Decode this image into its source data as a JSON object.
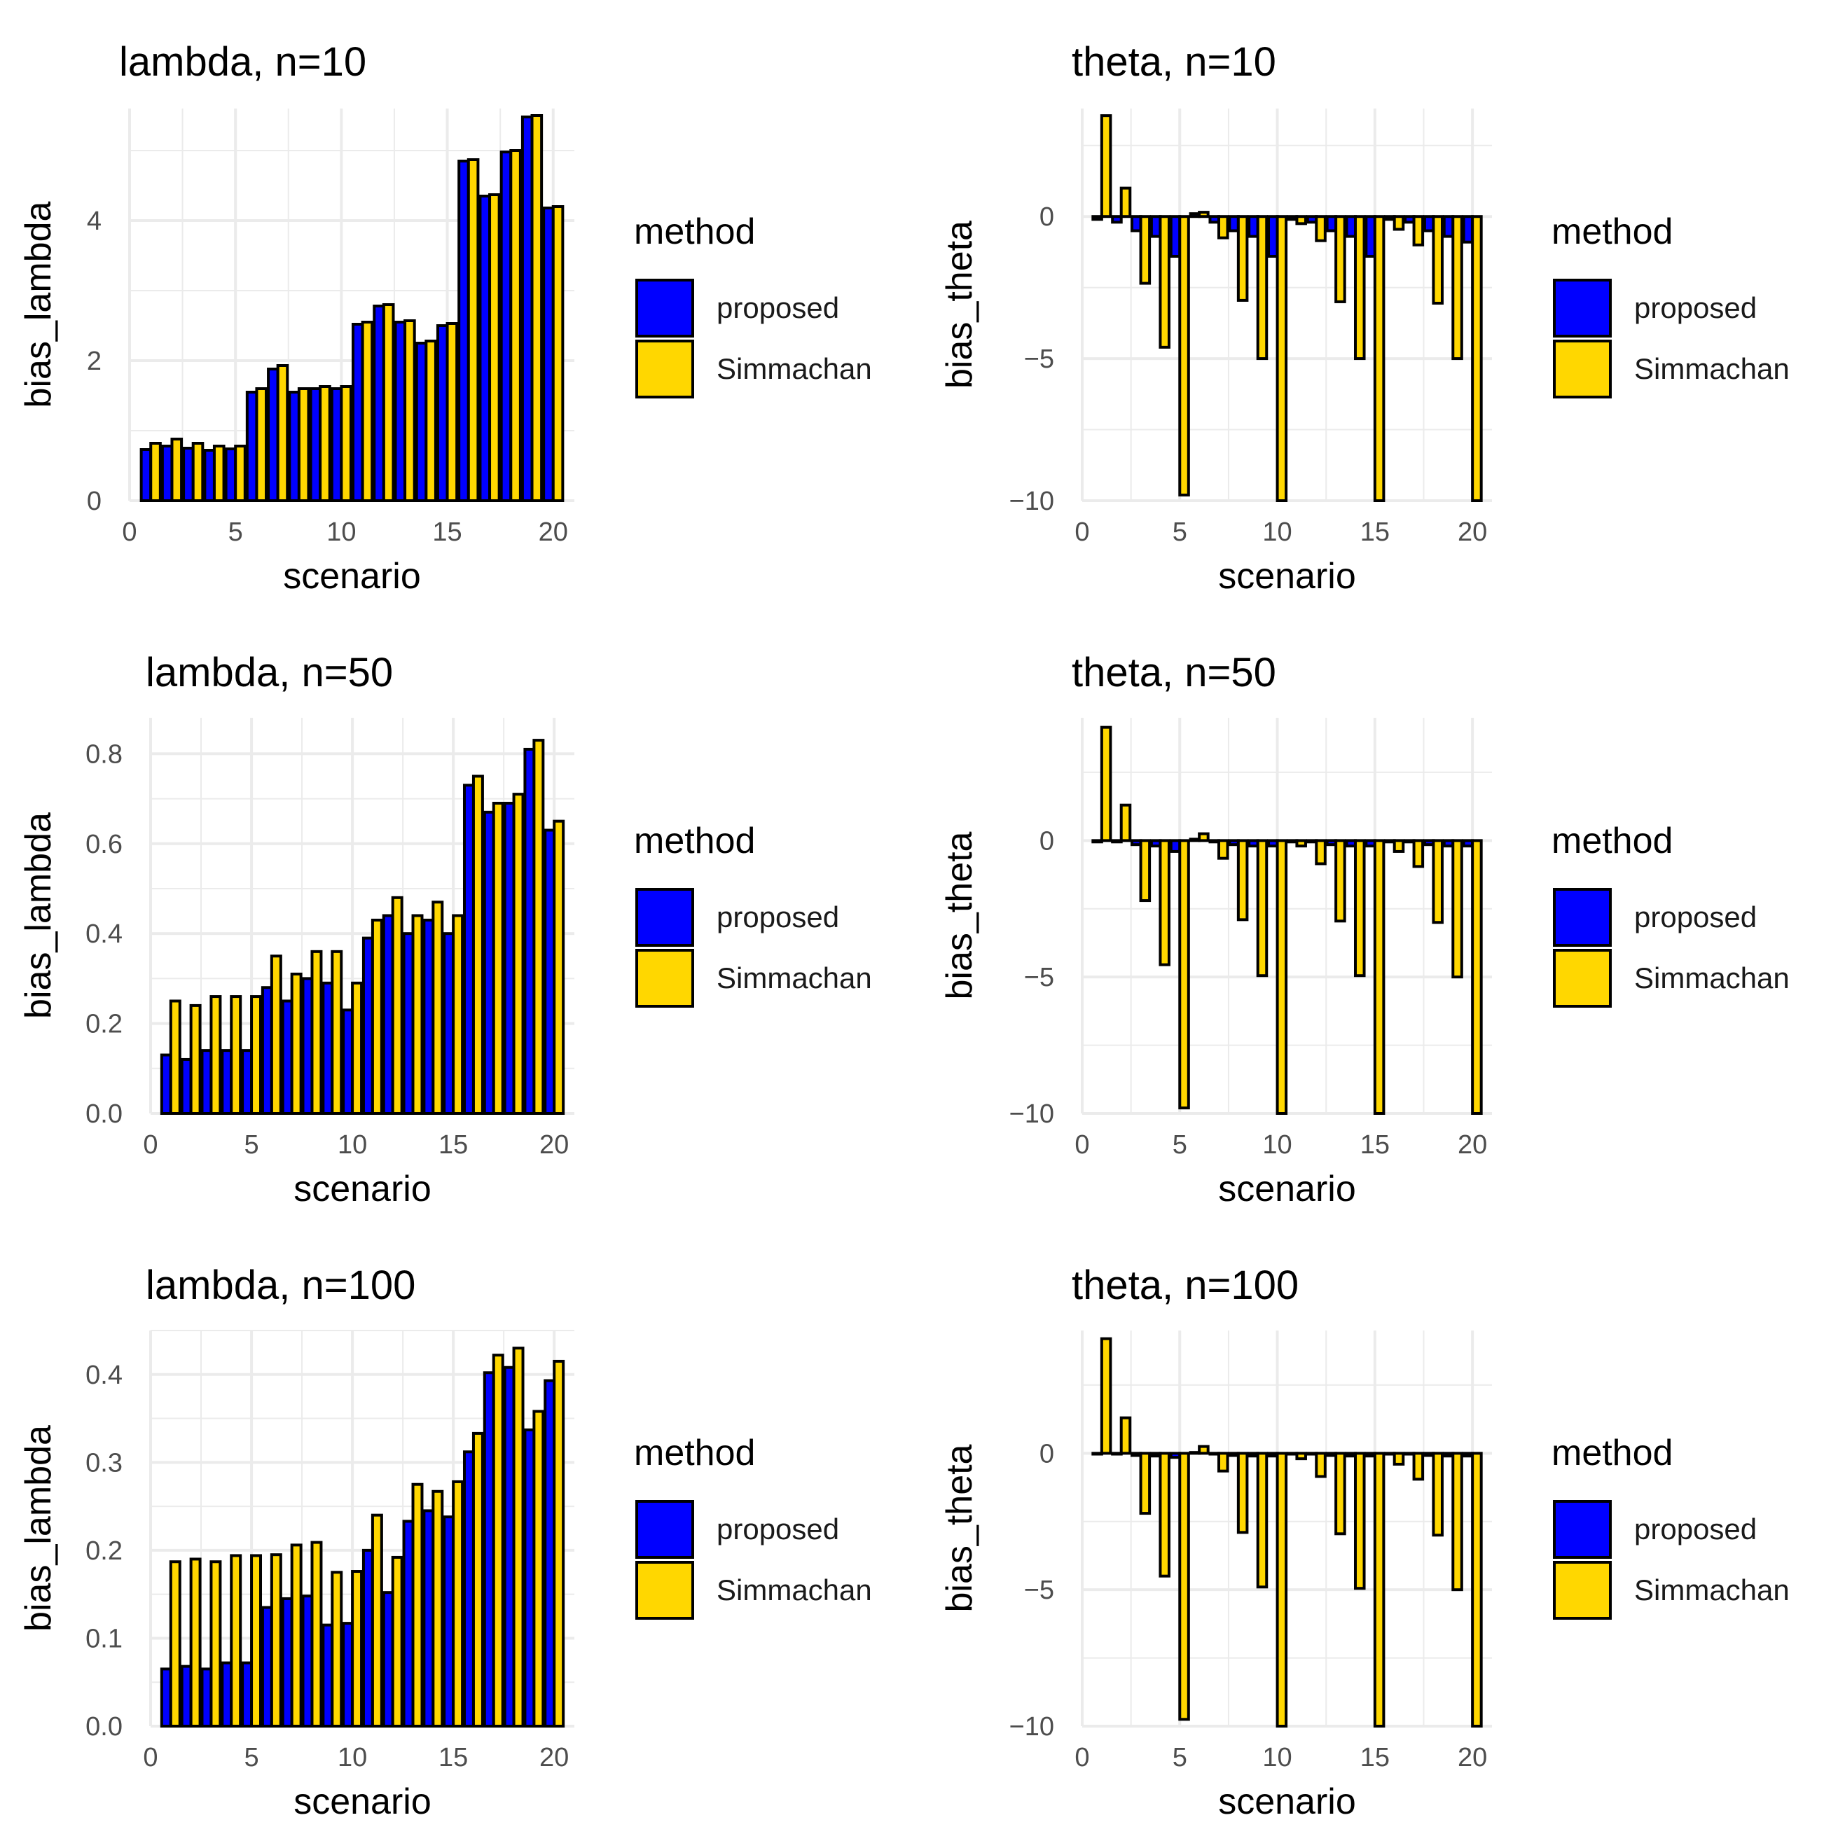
{
  "legend": {
    "title": "method",
    "items": [
      {
        "label": "proposed",
        "color": "#0000ff"
      },
      {
        "label": "Simmachan",
        "color": "#ffd700"
      }
    ]
  },
  "chart_data": [
    {
      "type": "bar",
      "title": "lambda, n=10",
      "xlabel": "scenario",
      "ylabel": "bias_lambda",
      "xlim": [
        0,
        21
      ],
      "xticks": [
        0,
        5,
        10,
        15,
        20
      ],
      "xtick_labels": [
        "0",
        "5",
        "10",
        "15",
        "20"
      ],
      "ylim": [
        0,
        5.6
      ],
      "yticks": [
        0,
        2,
        4
      ],
      "ytick_labels": [
        "0",
        "2",
        "4"
      ],
      "categories": [
        1,
        2,
        3,
        4,
        5,
        6,
        7,
        8,
        9,
        10,
        11,
        12,
        13,
        14,
        15,
        16,
        17,
        18,
        19,
        20
      ],
      "series": [
        {
          "name": "proposed",
          "values": [
            0.73,
            0.78,
            0.75,
            0.72,
            0.74,
            1.55,
            1.88,
            1.55,
            1.6,
            1.6,
            2.52,
            2.78,
            2.55,
            2.25,
            2.5,
            4.85,
            4.35,
            4.98,
            5.48,
            4.18
          ]
        },
        {
          "name": "Simmachan",
          "values": [
            0.82,
            0.88,
            0.82,
            0.78,
            0.78,
            1.6,
            1.93,
            1.6,
            1.63,
            1.63,
            2.55,
            2.8,
            2.57,
            2.28,
            2.53,
            4.87,
            4.37,
            5.0,
            5.5,
            4.2
          ]
        }
      ]
    },
    {
      "type": "bar",
      "title": "theta, n=10",
      "xlabel": "scenario",
      "ylabel": "bias_theta",
      "xlim": [
        0,
        21
      ],
      "xticks": [
        0,
        5,
        10,
        15,
        20
      ],
      "xtick_labels": [
        "0",
        "5",
        "10",
        "15",
        "20"
      ],
      "ylim": [
        -10,
        3.8
      ],
      "yticks": [
        -10,
        -5,
        0
      ],
      "ytick_labels": [
        "−10",
        "−5",
        "0"
      ],
      "categories": [
        1,
        2,
        3,
        4,
        5,
        6,
        7,
        8,
        9,
        10,
        11,
        12,
        13,
        14,
        15,
        16,
        17,
        18,
        19,
        20
      ],
      "series": [
        {
          "name": "proposed",
          "values": [
            -0.1,
            -0.2,
            -0.5,
            -0.7,
            -1.4,
            0.1,
            -0.2,
            -0.5,
            -0.7,
            -1.4,
            -0.1,
            -0.2,
            -0.5,
            -0.7,
            -1.4,
            -0.1,
            -0.2,
            -0.5,
            -0.7,
            -0.9
          ]
        },
        {
          "name": "Simmachan",
          "values": [
            3.55,
            1.0,
            -2.35,
            -4.6,
            -9.8,
            0.15,
            -0.75,
            -2.95,
            -5.0,
            -10.0,
            -0.25,
            -0.85,
            -3.0,
            -5.0,
            -10.0,
            -0.45,
            -1.0,
            -3.05,
            -5.0,
            -10.0
          ]
        }
      ]
    },
    {
      "type": "bar",
      "title": "lambda, n=50",
      "xlabel": "scenario",
      "ylabel": "bias_lambda",
      "xlim": [
        0,
        21
      ],
      "xticks": [
        0,
        5,
        10,
        15,
        20
      ],
      "xtick_labels": [
        "0",
        "5",
        "10",
        "15",
        "20"
      ],
      "ylim": [
        0,
        0.88
      ],
      "yticks": [
        0.0,
        0.2,
        0.4,
        0.6,
        0.8
      ],
      "ytick_labels": [
        "0.0",
        "0.2",
        "0.4",
        "0.6",
        "0.8"
      ],
      "categories": [
        1,
        2,
        3,
        4,
        5,
        6,
        7,
        8,
        9,
        10,
        11,
        12,
        13,
        14,
        15,
        16,
        17,
        18,
        19,
        20
      ],
      "series": [
        {
          "name": "proposed",
          "values": [
            0.13,
            0.12,
            0.14,
            0.14,
            0.14,
            0.28,
            0.25,
            0.3,
            0.29,
            0.23,
            0.39,
            0.44,
            0.4,
            0.43,
            0.4,
            0.73,
            0.67,
            0.69,
            0.81,
            0.63
          ]
        },
        {
          "name": "Simmachan",
          "values": [
            0.25,
            0.24,
            0.26,
            0.26,
            0.26,
            0.35,
            0.31,
            0.36,
            0.36,
            0.29,
            0.43,
            0.48,
            0.44,
            0.47,
            0.44,
            0.75,
            0.69,
            0.71,
            0.83,
            0.65
          ]
        }
      ]
    },
    {
      "type": "bar",
      "title": "theta, n=50",
      "xlabel": "scenario",
      "ylabel": "bias_theta",
      "xlim": [
        0,
        21
      ],
      "xticks": [
        0,
        5,
        10,
        15,
        20
      ],
      "xtick_labels": [
        "0",
        "5",
        "10",
        "15",
        "20"
      ],
      "ylim": [
        -10,
        4.5
      ],
      "yticks": [
        -10,
        -5,
        0
      ],
      "ytick_labels": [
        "−10",
        "−5",
        "0"
      ],
      "categories": [
        1,
        2,
        3,
        4,
        5,
        6,
        7,
        8,
        9,
        10,
        11,
        12,
        13,
        14,
        15,
        16,
        17,
        18,
        19,
        20
      ],
      "series": [
        {
          "name": "proposed",
          "values": [
            -0.05,
            -0.05,
            -0.15,
            -0.2,
            -0.4,
            0.05,
            -0.05,
            -0.15,
            -0.2,
            -0.2,
            -0.05,
            -0.05,
            -0.15,
            -0.2,
            -0.2,
            -0.05,
            -0.05,
            -0.15,
            -0.2,
            -0.2
          ]
        },
        {
          "name": "Simmachan",
          "values": [
            4.15,
            1.3,
            -2.2,
            -4.55,
            -9.8,
            0.25,
            -0.65,
            -2.9,
            -4.95,
            -10.0,
            -0.2,
            -0.85,
            -2.95,
            -4.95,
            -10.0,
            -0.4,
            -0.95,
            -3.0,
            -5.0,
            -10.0
          ]
        }
      ]
    },
    {
      "type": "bar",
      "title": "lambda, n=100",
      "xlabel": "scenario",
      "ylabel": "bias_lambda",
      "xlim": [
        0,
        21
      ],
      "xticks": [
        0,
        5,
        10,
        15,
        20
      ],
      "xtick_labels": [
        "0",
        "5",
        "10",
        "15",
        "20"
      ],
      "ylim": [
        0,
        0.45
      ],
      "yticks": [
        0.0,
        0.1,
        0.2,
        0.3,
        0.4
      ],
      "ytick_labels": [
        "0.0",
        "0.1",
        "0.2",
        "0.3",
        "0.4"
      ],
      "categories": [
        1,
        2,
        3,
        4,
        5,
        6,
        7,
        8,
        9,
        10,
        11,
        12,
        13,
        14,
        15,
        16,
        17,
        18,
        19,
        20
      ],
      "series": [
        {
          "name": "proposed",
          "values": [
            0.065,
            0.068,
            0.065,
            0.072,
            0.072,
            0.135,
            0.145,
            0.148,
            0.115,
            0.117,
            0.2,
            0.152,
            0.233,
            0.245,
            0.238,
            0.312,
            0.402,
            0.408,
            0.337,
            0.393
          ]
        },
        {
          "name": "Simmachan",
          "values": [
            0.187,
            0.19,
            0.187,
            0.194,
            0.194,
            0.195,
            0.206,
            0.209,
            0.175,
            0.176,
            0.24,
            0.192,
            0.275,
            0.267,
            0.278,
            0.333,
            0.422,
            0.43,
            0.358,
            0.415
          ]
        }
      ]
    },
    {
      "type": "bar",
      "title": "theta, n=100",
      "xlabel": "scenario",
      "ylabel": "bias_theta",
      "xlim": [
        0,
        21
      ],
      "xticks": [
        0,
        5,
        10,
        15,
        20
      ],
      "xtick_labels": [
        "0",
        "5",
        "10",
        "15",
        "20"
      ],
      "ylim": [
        -10,
        4.5
      ],
      "yticks": [
        -10,
        -5,
        0
      ],
      "ytick_labels": [
        "−10",
        "−5",
        "0"
      ],
      "categories": [
        1,
        2,
        3,
        4,
        5,
        6,
        7,
        8,
        9,
        10,
        11,
        12,
        13,
        14,
        15,
        16,
        17,
        18,
        19,
        20
      ],
      "series": [
        {
          "name": "proposed",
          "values": [
            -0.03,
            -0.03,
            -0.08,
            -0.1,
            -0.15,
            0.03,
            -0.03,
            -0.08,
            -0.1,
            -0.1,
            -0.03,
            -0.03,
            -0.08,
            -0.1,
            -0.1,
            -0.03,
            -0.03,
            -0.08,
            -0.1,
            -0.1
          ]
        },
        {
          "name": "Simmachan",
          "values": [
            4.2,
            1.3,
            -2.2,
            -4.5,
            -9.75,
            0.25,
            -0.65,
            -2.9,
            -4.9,
            -10.0,
            -0.2,
            -0.85,
            -2.95,
            -4.95,
            -10.0,
            -0.4,
            -0.95,
            -3.0,
            -5.0,
            -10.0
          ]
        }
      ]
    }
  ]
}
